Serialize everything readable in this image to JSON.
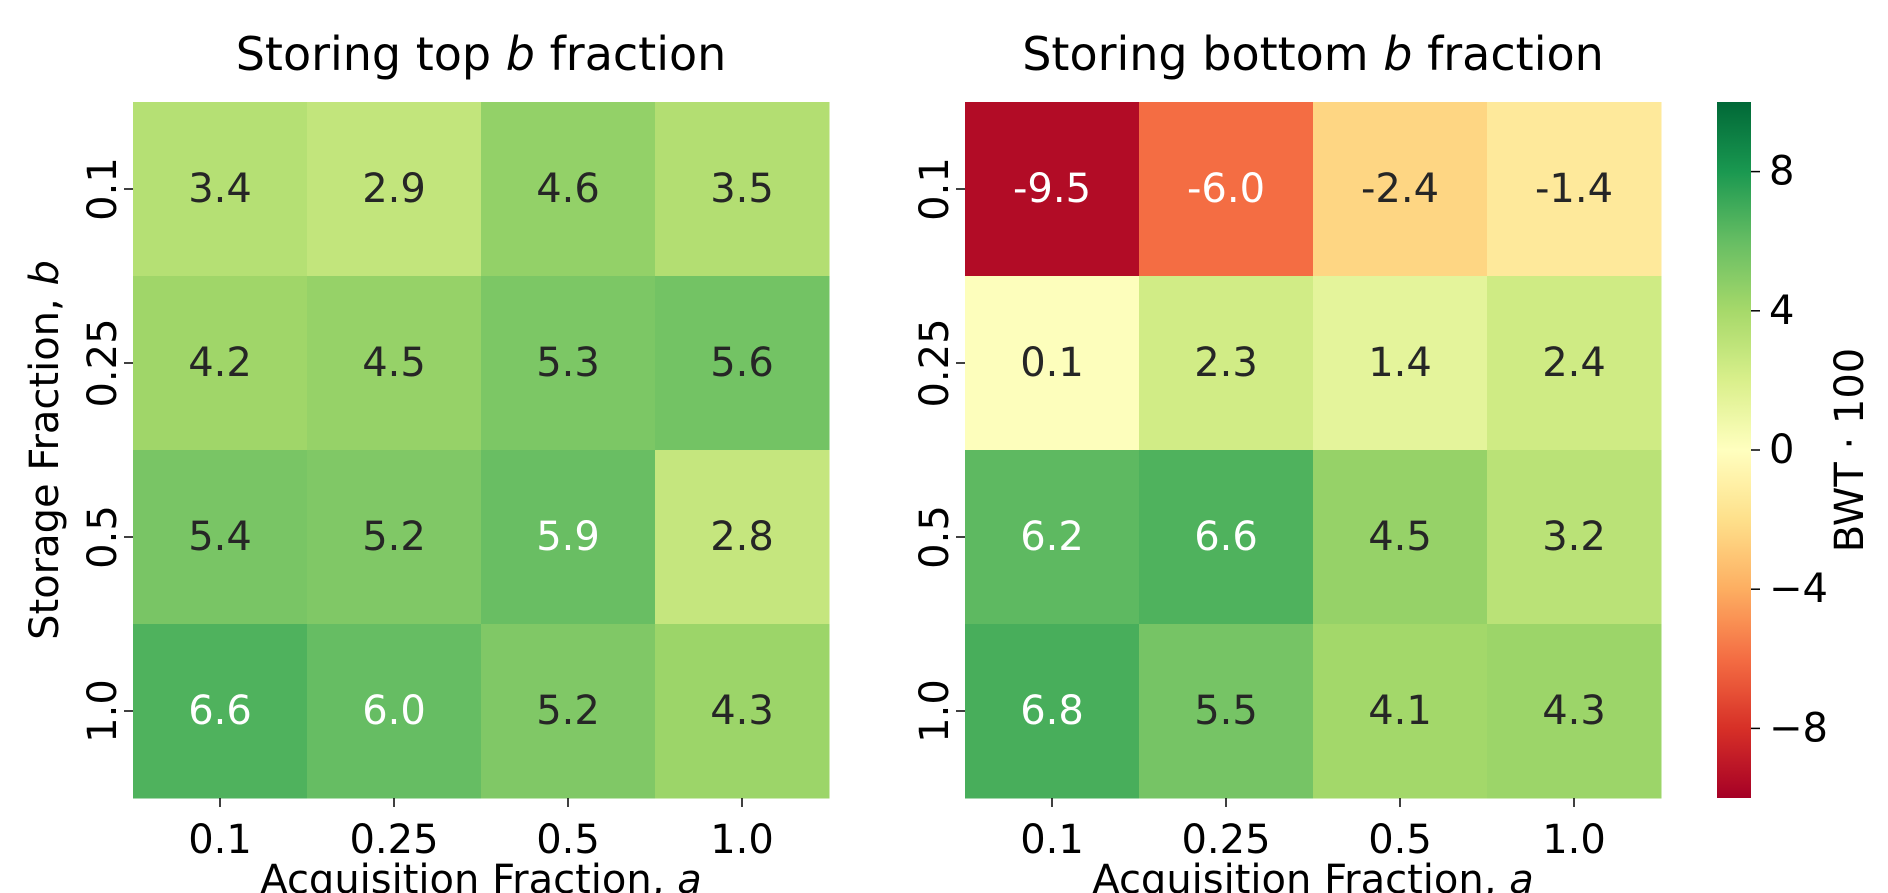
{
  "chart_data": [
    {
      "type": "heatmap",
      "title_prefix": "Storing top ",
      "title_italic": "b",
      "title_suffix": " fraction",
      "xlabel_prefix": "Acquisition Fraction, ",
      "xlabel_italic": "a",
      "ylabel_prefix": "Storage Fraction, ",
      "ylabel_italic": "b",
      "x_categories": [
        "0.1",
        "0.25",
        "0.5",
        "1.0"
      ],
      "y_categories": [
        "0.1",
        "0.25",
        "0.5",
        "1.0"
      ],
      "values": [
        [
          3.4,
          2.9,
          4.6,
          3.5
        ],
        [
          4.2,
          4.5,
          5.3,
          5.6
        ],
        [
          5.4,
          5.2,
          5.9,
          2.8
        ],
        [
          6.6,
          6.0,
          5.2,
          4.3
        ]
      ],
      "labels": [
        [
          "3.4",
          "2.9",
          "4.6",
          "3.5"
        ],
        [
          "4.2",
          "4.5",
          "5.3",
          "5.6"
        ],
        [
          "5.4",
          "5.2",
          "5.9",
          "2.8"
        ],
        [
          "6.6",
          "6.0",
          "5.2",
          "4.3"
        ]
      ]
    },
    {
      "type": "heatmap",
      "title_prefix": "Storing bottom ",
      "title_italic": "b",
      "title_suffix": " fraction",
      "xlabel_prefix": "Acquisition Fraction, ",
      "xlabel_italic": "a",
      "ylabel_prefix": "",
      "ylabel_italic": "",
      "x_categories": [
        "0.1",
        "0.25",
        "0.5",
        "1.0"
      ],
      "y_categories": [
        "0.1",
        "0.25",
        "0.5",
        "1.0"
      ],
      "values": [
        [
          -9.5,
          -6.0,
          -2.4,
          -1.4
        ],
        [
          0.1,
          2.3,
          1.4,
          2.4
        ],
        [
          6.2,
          6.6,
          4.5,
          3.2
        ],
        [
          6.8,
          5.5,
          4.1,
          4.3
        ]
      ],
      "labels": [
        [
          "-9.5",
          "-6.0",
          "-2.4",
          "-1.4"
        ],
        [
          "0.1",
          "2.3",
          "1.4",
          "2.4"
        ],
        [
          "6.2",
          "6.6",
          "4.5",
          "3.2"
        ],
        [
          "6.8",
          "5.5",
          "4.1",
          "4.3"
        ]
      ]
    }
  ],
  "colorbar": {
    "label": "BWT · 100",
    "colormap": "RdYlGn",
    "vmin": -10,
    "vmax": 10,
    "ticks": [
      8,
      4,
      0,
      -4,
      -8
    ],
    "tick_labels": [
      "8",
      "4",
      "0",
      "−4",
      "−8"
    ]
  }
}
